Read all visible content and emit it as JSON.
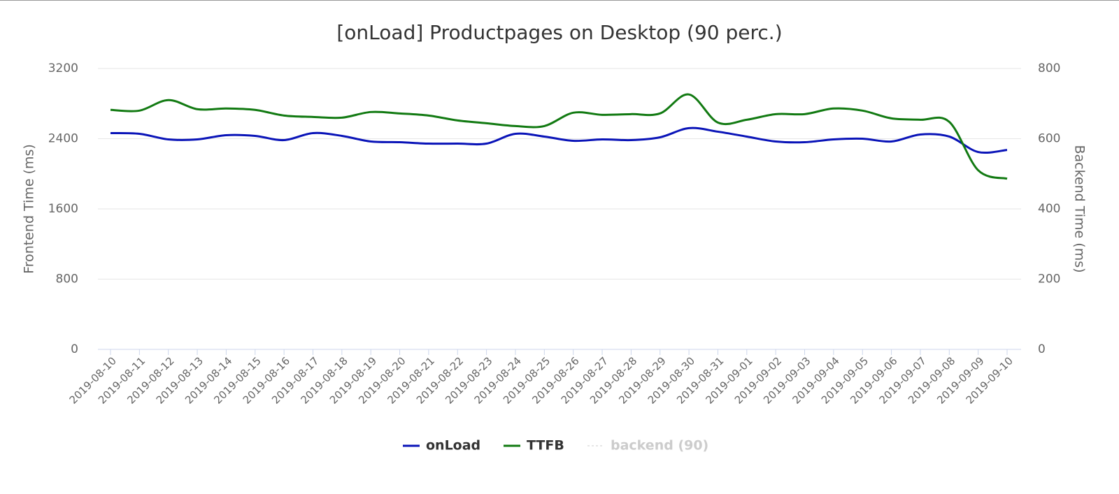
{
  "chart_data": {
    "type": "line",
    "title": "[onLoad] Productpages on Desktop (90 perc.)",
    "ylabel": "Frontend Time (ms)",
    "y2label": "Backend Time (ms)",
    "categories": [
      "2019-08-10",
      "2019-08-11",
      "2019-08-12",
      "2019-08-13",
      "2019-08-14",
      "2019-08-15",
      "2019-08-16",
      "2019-08-17",
      "2019-08-18",
      "2019-08-19",
      "2019-08-20",
      "2019-08-21",
      "2019-08-22",
      "2019-08-23",
      "2019-08-24",
      "2019-08-25",
      "2019-08-26",
      "2019-08-27",
      "2019-08-28",
      "2019-08-29",
      "2019-08-30",
      "2019-08-31",
      "2019-09-01",
      "2019-09-02",
      "2019-09-03",
      "2019-09-04",
      "2019-09-05",
      "2019-09-06",
      "2019-09-07",
      "2019-09-08",
      "2019-09-09",
      "2019-09-10"
    ],
    "series": [
      {
        "name": "onLoad",
        "color": "#0a14b8",
        "values": [
          2464,
          2456,
          2392,
          2392,
          2440,
          2432,
          2384,
          2464,
          2432,
          2368,
          2360,
          2344,
          2344,
          2344,
          2456,
          2424,
          2376,
          2392,
          2384,
          2416,
          2520,
          2480,
          2424,
          2368,
          2360,
          2392,
          2400,
          2368,
          2448,
          2424,
          2248,
          2272
        ]
      },
      {
        "name": "TTFB",
        "color": "#127a12",
        "axis": "y2",
        "values": [
          682,
          680,
          710,
          684,
          686,
          682,
          666,
          662,
          660,
          676,
          672,
          666,
          652,
          644,
          636,
          636,
          674,
          668,
          670,
          672,
          726,
          646,
          654,
          670,
          670,
          686,
          680,
          658,
          654,
          648,
          510,
          486
        ]
      },
      {
        "name": "backend (90)",
        "color": "#cccccc",
        "hidden": true
      }
    ],
    "ylim": [
      0,
      3200
    ],
    "yticks": [
      0,
      800,
      1600,
      2400,
      3200
    ],
    "y2lim": [
      0,
      800
    ],
    "y2ticks": [
      0,
      200,
      400,
      600,
      800
    ],
    "grid": true
  }
}
